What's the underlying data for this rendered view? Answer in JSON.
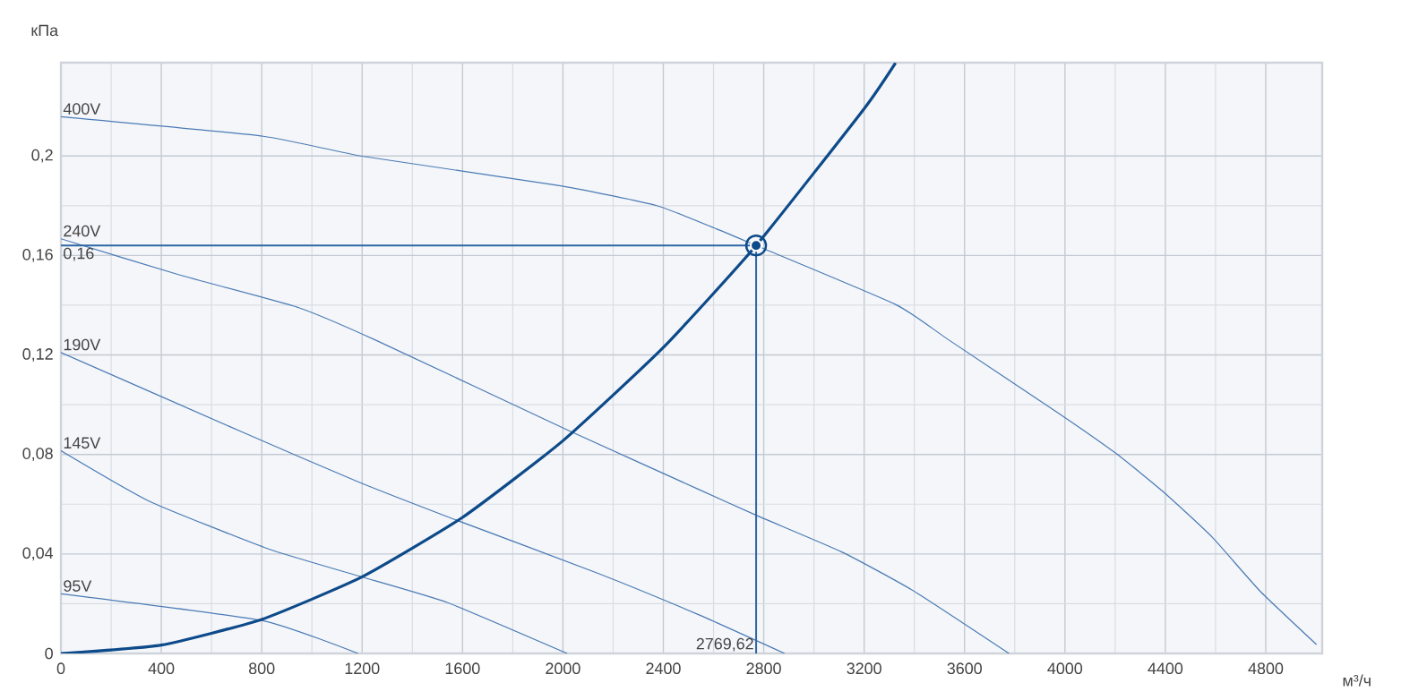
{
  "chart_data": {
    "type": "line",
    "xlabel": "м³/ч",
    "ylabel": "кПа",
    "xlim": [
      0,
      5025
    ],
    "ylim": [
      0,
      0.2375
    ],
    "xticks": [
      0,
      400,
      800,
      1200,
      1600,
      2000,
      2400,
      2800,
      3200,
      3600,
      4000,
      4400,
      4800
    ],
    "yticks": [
      0,
      {
        "value": 0.04,
        "label": "0,04"
      },
      {
        "value": 0.08,
        "label": "0,08"
      },
      {
        "value": 0.12,
        "label": "0,12"
      },
      {
        "value": 0.16,
        "label": "0,16"
      },
      {
        "value": 0.2,
        "label": "0,2"
      }
    ],
    "grid": true,
    "marker": "none",
    "series": [
      {
        "name": "400V",
        "color": "#4a7ab5",
        "x": [
          0,
          806,
          1206,
          1992,
          2374,
          2611,
          2769.62,
          3325,
          3539,
          3967,
          4205,
          4395,
          4586,
          4776,
          5002
        ],
        "values": [
          0.2158,
          0.2079,
          0.1998,
          0.188,
          0.18,
          0.1707,
          0.164,
          0.1403,
          0.1259,
          0.0971,
          0.0803,
          0.0647,
          0.0468,
          0.0252,
          0.0036
        ]
      },
      {
        "name": "240V",
        "color": "#4a7ab5",
        "x": [
          0,
          471,
          947,
          1255,
          2017,
          2540,
          2778,
          3111,
          3396,
          3777
        ],
        "values": [
          0.1667,
          0.1522,
          0.139,
          0.1259,
          0.0899,
          0.066,
          0.0552,
          0.0408,
          0.0252,
          0
        ]
      },
      {
        "name": "190V",
        "color": "#4a7ab5",
        "x": [
          0,
          711,
          1184,
          1565,
          2135,
          2540,
          2883
        ],
        "values": [
          0.121,
          0.0895,
          0.069,
          0.054,
          0.0324,
          0.0156,
          0
        ]
      },
      {
        "name": "145V",
        "color": "#4a7ab5",
        "x": [
          0,
          352,
          827,
          1184,
          1541,
          2017
        ],
        "values": [
          0.0815,
          0.0612,
          0.042,
          0.0312,
          0.0204,
          0
        ]
      },
      {
        "name": "95V",
        "color": "#4a7ab5",
        "x": [
          0,
          803,
          1184
        ],
        "values": [
          0.024,
          0.0132,
          0
        ]
      },
      {
        "color": "#0d4a8a",
        "x": [
          0,
          400,
          800,
          1200,
          1600,
          2000,
          2400,
          2769.62,
          3200,
          3325
        ],
        "values": [
          0,
          0.0034,
          0.0137,
          0.0308,
          0.0547,
          0.0855,
          0.123,
          0.164,
          0.219,
          0.2374
        ]
      },
      {
        "color": "#2f66a6",
        "x": [
          0,
          2769.62
        ],
        "values": [
          0.164,
          0.164
        ]
      },
      {
        "color": "#2f66a6",
        "x": [
          2769.62,
          2769.62
        ],
        "values": [
          0,
          0.164
        ]
      },
      {
        "type": "scatter",
        "marker": "circle",
        "color": "#0d4a8a",
        "x": [
          2769.62
        ],
        "values": [
          0.164
        ]
      }
    ],
    "annotations": [
      {
        "text": "0,16",
        "x": 0,
        "y": 0.164
      },
      {
        "text": "2769,62",
        "x": 2769.62,
        "y": 0
      }
    ]
  }
}
